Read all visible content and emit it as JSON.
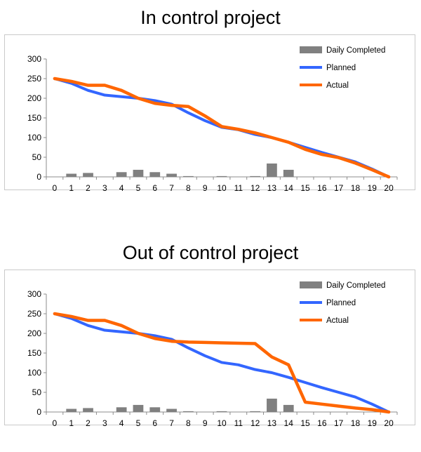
{
  "charts": [
    {
      "title": "In control project"
    },
    {
      "title": "Out of control project"
    }
  ],
  "chart_data": [
    {
      "type": "bar+line",
      "title": "In control project",
      "xlabel": "",
      "ylabel": "",
      "x": [
        0,
        1,
        2,
        3,
        4,
        5,
        6,
        7,
        8,
        9,
        10,
        11,
        12,
        13,
        14,
        15,
        16,
        17,
        18,
        19,
        20
      ],
      "ylim": [
        0,
        300
      ],
      "yticks": [
        0,
        50,
        100,
        150,
        200,
        250,
        300
      ],
      "grid": false,
      "legend_position": "top-right",
      "series": [
        {
          "name": "Daily Completed",
          "kind": "bar",
          "color": "#808080",
          "values": [
            0,
            8,
            10,
            0,
            12,
            18,
            12,
            8,
            2,
            0,
            2,
            0,
            2,
            34,
            18,
            0,
            0,
            0,
            0,
            0,
            0
          ]
        },
        {
          "name": "Planned",
          "kind": "line",
          "color": "#3366ff",
          "values": [
            250,
            238,
            220,
            208,
            204,
            200,
            194,
            185,
            163,
            143,
            126,
            120,
            108,
            100,
            88,
            75,
            62,
            50,
            38,
            20,
            0
          ]
        },
        {
          "name": "Actual",
          "kind": "line",
          "color": "#ff6600",
          "values": [
            250,
            243,
            233,
            233,
            220,
            200,
            187,
            182,
            179,
            155,
            128,
            121,
            112,
            100,
            88,
            70,
            57,
            49,
            35,
            18,
            0
          ]
        }
      ]
    },
    {
      "type": "bar+line",
      "title": "Out of control project",
      "xlabel": "",
      "ylabel": "",
      "x": [
        0,
        1,
        2,
        3,
        4,
        5,
        6,
        7,
        8,
        9,
        10,
        11,
        12,
        13,
        14,
        15,
        16,
        17,
        18,
        19,
        20
      ],
      "ylim": [
        0,
        300
      ],
      "yticks": [
        0,
        50,
        100,
        150,
        200,
        250,
        300
      ],
      "grid": false,
      "legend_position": "top-right",
      "series": [
        {
          "name": "Daily Completed",
          "kind": "bar",
          "color": "#808080",
          "values": [
            0,
            8,
            10,
            0,
            12,
            18,
            12,
            8,
            2,
            0,
            2,
            0,
            2,
            34,
            18,
            0,
            0,
            0,
            0,
            0,
            0
          ]
        },
        {
          "name": "Planned",
          "kind": "line",
          "color": "#3366ff",
          "values": [
            250,
            238,
            220,
            208,
            204,
            200,
            194,
            185,
            163,
            143,
            126,
            120,
            108,
            100,
            88,
            75,
            62,
            50,
            38,
            20,
            0
          ]
        },
        {
          "name": "Actual",
          "kind": "line",
          "color": "#ff6600",
          "values": [
            250,
            243,
            233,
            233,
            220,
            200,
            187,
            180,
            178,
            177,
            176,
            175,
            174,
            140,
            120,
            25,
            20,
            15,
            10,
            6,
            0
          ]
        }
      ]
    }
  ]
}
